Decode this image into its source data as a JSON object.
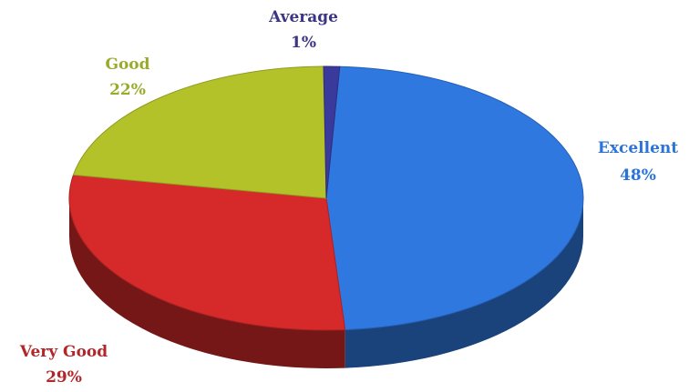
{
  "chart_data": {
    "type": "pie",
    "style": "3d",
    "slices": [
      {
        "name": "Excellent",
        "value": 48,
        "value_label": "48%",
        "color": "#2f78e0",
        "label_color": "#2a73d8"
      },
      {
        "name": "Very Good",
        "value": 29,
        "value_label": "29%",
        "color": "#d62a2a",
        "label_color": "#b2262a"
      },
      {
        "name": "Good",
        "value": 22,
        "value_label": "22%",
        "color": "#b3c229",
        "label_color": "#9aab2c"
      },
      {
        "name": "Average",
        "value": 1,
        "value_label": "1%",
        "color": "#3a3a9c",
        "label_color": "#3b3585"
      }
    ]
  }
}
